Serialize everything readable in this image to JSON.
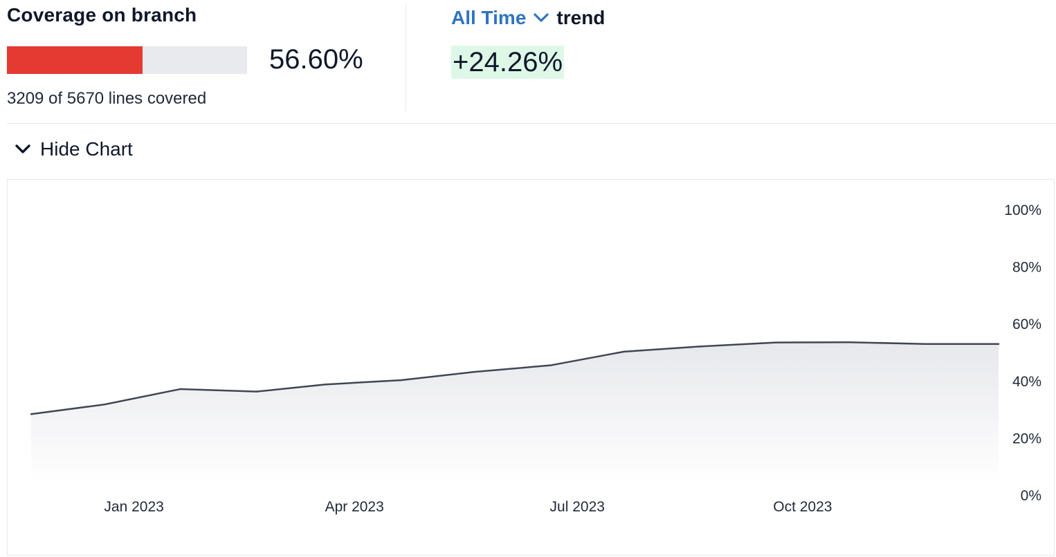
{
  "coverage": {
    "title": "Coverage on branch",
    "percent_label": "56.60%",
    "fraction": 0.566,
    "lines_label": "3209 of 5670 lines covered",
    "bar_color": "#e33b32"
  },
  "trend": {
    "range_label": "All Time",
    "range_icon": "chevron-down-icon",
    "word": "trend",
    "change_label": "+24.26%",
    "change_bg": "#ddf8e6"
  },
  "toggle": {
    "label": "Hide Chart",
    "icon": "chevron-down-icon"
  },
  "chart_data": {
    "type": "area",
    "ylim": [
      0,
      100
    ],
    "y_ticks": [
      "0%",
      "20%",
      "40%",
      "60%",
      "80%",
      "100%"
    ],
    "y_tick_values": [
      0,
      20,
      40,
      60,
      80,
      100
    ],
    "x_ticks": [
      {
        "label": "Jan 2023",
        "date": "2023-01-01"
      },
      {
        "label": "Apr 2023",
        "date": "2023-04-01"
      },
      {
        "label": "Jul 2023",
        "date": "2023-07-01"
      },
      {
        "label": "Oct 2023",
        "date": "2023-10-01"
      }
    ],
    "points": [
      {
        "date": "2022-11-20",
        "value": 28.5
      },
      {
        "date": "2022-12-20",
        "value": 31.9
      },
      {
        "date": "2023-01-20",
        "value": 37.3
      },
      {
        "date": "2023-02-20",
        "value": 36.4
      },
      {
        "date": "2023-03-20",
        "value": 38.9
      },
      {
        "date": "2023-04-20",
        "value": 40.4
      },
      {
        "date": "2023-05-20",
        "value": 43.3
      },
      {
        "date": "2023-06-20",
        "value": 45.6
      },
      {
        "date": "2023-07-20",
        "value": 50.4
      },
      {
        "date": "2023-08-20",
        "value": 52.2
      },
      {
        "date": "2023-09-20",
        "value": 53.6
      },
      {
        "date": "2023-10-20",
        "value": 53.7
      },
      {
        "date": "2023-11-20",
        "value": 53.1
      },
      {
        "date": "2023-12-20",
        "value": 53.1
      }
    ],
    "line_color": "#3f4654",
    "fill_color": "#e9eaee",
    "grid": false
  }
}
